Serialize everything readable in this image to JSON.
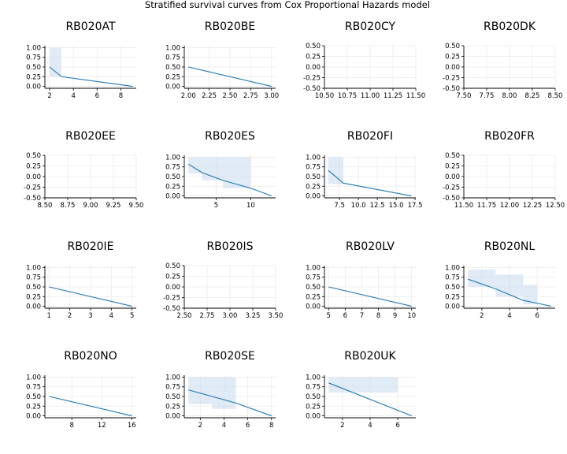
{
  "figure": {
    "title": "Stratified survival curves from Cox Proportional Hazards model",
    "line_color": "#1f77b4",
    "band_color": "#c9daee",
    "grid_color": "#ebebeb"
  },
  "chart_data": [
    {
      "type": "line",
      "title": "RB020AT",
      "xlim": [
        1.6,
        9.3
      ],
      "ylim": [
        -0.05,
        1.05
      ],
      "xticks": [
        2,
        4,
        6,
        8
      ],
      "xtick_labels": [
        "2",
        "4",
        "6",
        "8"
      ],
      "yticks": [
        0,
        0.25,
        0.5,
        0.75,
        1
      ],
      "ytick_labels": [
        "0.00",
        "0.25",
        "0.50",
        "0.75",
        "1.00"
      ],
      "series": [
        {
          "x": [
            2,
            3,
            9
          ],
          "y": [
            0.5,
            0.25,
            0.0
          ]
        }
      ],
      "ci": {
        "x": [
          2,
          3
        ],
        "lower": [
          0.25,
          0.08
        ],
        "upper": [
          1.0,
          1.0
        ]
      }
    },
    {
      "type": "line",
      "title": "RB020BE",
      "xlim": [
        1.95,
        3.05
      ],
      "ylim": [
        -0.05,
        1.05
      ],
      "xticks": [
        2,
        2.25,
        2.5,
        2.75,
        3
      ],
      "xtick_labels": [
        "2.00",
        "2.25",
        "2.50",
        "2.75",
        "3.00"
      ],
      "yticks": [
        0,
        0.25,
        0.5,
        0.75,
        1
      ],
      "ytick_labels": [
        "0.00",
        "0.25",
        "0.50",
        "0.75",
        "1.00"
      ],
      "series": [
        {
          "x": [
            2,
            3
          ],
          "y": [
            0.5,
            0.0
          ]
        }
      ]
    },
    {
      "type": "line",
      "title": "RB020CY",
      "xlim": [
        10.5,
        11.5
      ],
      "ylim": [
        -0.5,
        0.5
      ],
      "xticks": [
        10.5,
        10.75,
        11,
        11.25,
        11.5
      ],
      "xtick_labels": [
        "10.50",
        "10.75",
        "11.00",
        "11.25",
        "11.50"
      ],
      "yticks": [
        -0.5,
        -0.25,
        0,
        0.25,
        0.5
      ],
      "ytick_labels": [
        "-0.50",
        "-0.25",
        "0.00",
        "0.25",
        "0.50"
      ],
      "series": []
    },
    {
      "type": "line",
      "title": "RB020DK",
      "xlim": [
        7.5,
        8.5
      ],
      "ylim": [
        -0.5,
        0.5
      ],
      "xticks": [
        7.5,
        7.75,
        8,
        8.25,
        8.5
      ],
      "xtick_labels": [
        "7.50",
        "7.75",
        "8.00",
        "8.25",
        "8.50"
      ],
      "yticks": [
        -0.5,
        -0.25,
        0,
        0.25,
        0.5
      ],
      "ytick_labels": [
        "-0.50",
        "-0.25",
        "0.00",
        "0.25",
        "0.50"
      ],
      "series": []
    },
    {
      "type": "line",
      "title": "RB020EE",
      "xlim": [
        8.5,
        9.5
      ],
      "ylim": [
        -0.5,
        0.5
      ],
      "xticks": [
        8.5,
        8.75,
        9,
        9.25,
        9.5
      ],
      "xtick_labels": [
        "8.50",
        "8.75",
        "9.00",
        "9.25",
        "9.50"
      ],
      "yticks": [
        -0.5,
        -0.25,
        0,
        0.25,
        0.5
      ],
      "ytick_labels": [
        "-0.50",
        "-0.25",
        "0.00",
        "0.25",
        "0.50"
      ],
      "series": []
    },
    {
      "type": "line",
      "title": "RB020ES",
      "xlim": [
        0.4,
        13.6
      ],
      "ylim": [
        -0.05,
        1.05
      ],
      "xticks": [
        5,
        10
      ],
      "xtick_labels": [
        "5",
        "10"
      ],
      "yticks": [
        0,
        0.25,
        0.5,
        0.75,
        1
      ],
      "ytick_labels": [
        "0.00",
        "0.25",
        "0.50",
        "0.75",
        "1.00"
      ],
      "series": [
        {
          "x": [
            1,
            3,
            6,
            10,
            13
          ],
          "y": [
            0.82,
            0.6,
            0.4,
            0.2,
            0.0
          ]
        }
      ],
      "ci": {
        "x": [
          1,
          3,
          6,
          10
        ],
        "lower": [
          0.58,
          0.4,
          0.2,
          0.05
        ],
        "upper": [
          1.0,
          1.0,
          1.0,
          1.0
        ]
      }
    },
    {
      "type": "line",
      "title": "RB020FI",
      "xlim": [
        5.5,
        17.6
      ],
      "ylim": [
        -0.05,
        1.05
      ],
      "xticks": [
        7.5,
        10,
        12.5,
        15,
        17.5
      ],
      "xtick_labels": [
        "7.5",
        "10.0",
        "12.5",
        "15.0",
        "17.5"
      ],
      "yticks": [
        0,
        0.25,
        0.5,
        0.75,
        1
      ],
      "ytick_labels": [
        "0.00",
        "0.25",
        "0.50",
        "0.75",
        "1.00"
      ],
      "series": [
        {
          "x": [
            6,
            8,
            17
          ],
          "y": [
            0.66,
            0.33,
            0.0
          ]
        }
      ],
      "ci": {
        "x": [
          6,
          8
        ],
        "lower": [
          0.3,
          0.1
        ],
        "upper": [
          1.0,
          1.0
        ]
      }
    },
    {
      "type": "line",
      "title": "RB020FR",
      "xlim": [
        11.5,
        12.5
      ],
      "ylim": [
        -0.5,
        0.5
      ],
      "xticks": [
        11.5,
        11.75,
        12,
        12.25,
        12.5
      ],
      "xtick_labels": [
        "11.50",
        "11.75",
        "12.00",
        "12.25",
        "12.50"
      ],
      "yticks": [
        -0.5,
        -0.25,
        0,
        0.25,
        0.5
      ],
      "ytick_labels": [
        "-0.50",
        "-0.25",
        "0.00",
        "0.25",
        "0.50"
      ],
      "series": []
    },
    {
      "type": "line",
      "title": "RB020IE",
      "xlim": [
        0.8,
        5.2
      ],
      "ylim": [
        -0.05,
        1.05
      ],
      "xticks": [
        1,
        2,
        3,
        4,
        5
      ],
      "xtick_labels": [
        "1",
        "2",
        "3",
        "4",
        "5"
      ],
      "yticks": [
        0,
        0.25,
        0.5,
        0.75,
        1
      ],
      "ytick_labels": [
        "0.00",
        "0.25",
        "0.50",
        "0.75",
        "1.00"
      ],
      "series": [
        {
          "x": [
            1,
            5
          ],
          "y": [
            0.5,
            0.0
          ]
        }
      ]
    },
    {
      "type": "line",
      "title": "RB020IS",
      "xlim": [
        2.5,
        3.5
      ],
      "ylim": [
        -0.5,
        0.5
      ],
      "xticks": [
        2.5,
        2.75,
        3,
        3.25,
        3.5
      ],
      "xtick_labels": [
        "2.50",
        "2.75",
        "3.00",
        "3.25",
        "3.50"
      ],
      "yticks": [
        -0.5,
        -0.25,
        0,
        0.25,
        0.5
      ],
      "ytick_labels": [
        "-0.50",
        "-0.25",
        "0.00",
        "0.25",
        "0.50"
      ],
      "series": []
    },
    {
      "type": "line",
      "title": "RB020LV",
      "xlim": [
        4.75,
        10.25
      ],
      "ylim": [
        -0.05,
        1.05
      ],
      "xticks": [
        5,
        6,
        7,
        8,
        9,
        10
      ],
      "xtick_labels": [
        "5",
        "6",
        "7",
        "8",
        "9",
        "10"
      ],
      "yticks": [
        0,
        0.25,
        0.5,
        0.75,
        1
      ],
      "ytick_labels": [
        "0.00",
        "0.25",
        "0.50",
        "0.75",
        "1.00"
      ],
      "series": [
        {
          "x": [
            5,
            10
          ],
          "y": [
            0.5,
            0.0
          ]
        }
      ]
    },
    {
      "type": "line",
      "title": "RB020NL",
      "xlim": [
        0.7,
        7.3
      ],
      "ylim": [
        -0.05,
        1.05
      ],
      "xticks": [
        2,
        4,
        6
      ],
      "xtick_labels": [
        "2",
        "4",
        "6"
      ],
      "yticks": [
        0,
        0.25,
        0.5,
        0.75,
        1
      ],
      "ytick_labels": [
        "0.00",
        "0.25",
        "0.50",
        "0.75",
        "1.00"
      ],
      "series": [
        {
          "x": [
            1,
            3,
            5,
            6,
            7
          ],
          "y": [
            0.7,
            0.45,
            0.15,
            0.08,
            0.0
          ]
        }
      ],
      "ci": {
        "x": [
          1,
          3,
          5,
          6
        ],
        "lower": [
          0.5,
          0.25,
          0.05,
          0.02
        ],
        "upper": [
          0.95,
          0.82,
          0.55,
          0.5
        ]
      }
    },
    {
      "type": "line",
      "title": "RB020NO",
      "xlim": [
        4.4,
        16.6
      ],
      "ylim": [
        -0.05,
        1.05
      ],
      "xticks": [
        8,
        12,
        16
      ],
      "xtick_labels": [
        "8",
        "12",
        "16"
      ],
      "yticks": [
        0,
        0.25,
        0.5,
        0.75,
        1
      ],
      "ytick_labels": [
        "0.00",
        "0.25",
        "0.50",
        "0.75",
        "1.00"
      ],
      "series": [
        {
          "x": [
            5,
            16
          ],
          "y": [
            0.5,
            0.0
          ]
        }
      ]
    },
    {
      "type": "line",
      "title": "RB020SE",
      "xlim": [
        0.65,
        8.35
      ],
      "ylim": [
        -0.05,
        1.05
      ],
      "xticks": [
        2,
        4,
        6,
        8
      ],
      "xtick_labels": [
        "2",
        "4",
        "6",
        "8"
      ],
      "yticks": [
        0,
        0.25,
        0.5,
        0.75,
        1
      ],
      "ytick_labels": [
        "0.00",
        "0.25",
        "0.50",
        "0.75",
        "1.00"
      ],
      "series": [
        {
          "x": [
            1,
            3,
            5,
            8
          ],
          "y": [
            0.67,
            0.5,
            0.33,
            0.0
          ]
        }
      ],
      "ci": {
        "x": [
          1,
          3,
          5
        ],
        "lower": [
          0.3,
          0.18,
          0.06
        ],
        "upper": [
          1.0,
          1.0,
          1.0
        ]
      }
    },
    {
      "type": "line",
      "title": "RB020UK",
      "xlim": [
        0.7,
        7.3
      ],
      "ylim": [
        -0.05,
        1.05
      ],
      "xticks": [
        2,
        4,
        6
      ],
      "xtick_labels": [
        "2",
        "4",
        "6"
      ],
      "yticks": [
        0,
        0.25,
        0.5,
        0.75,
        1
      ],
      "ytick_labels": [
        "0.00",
        "0.25",
        "0.50",
        "0.75",
        "1.00"
      ],
      "series": [
        {
          "x": [
            1,
            7
          ],
          "y": [
            0.85,
            0.0
          ]
        }
      ],
      "ci": {
        "x": [
          1,
          6
        ],
        "lower": [
          0.6,
          0.0
        ],
        "upper": [
          1.0,
          0.9
        ]
      }
    }
  ]
}
